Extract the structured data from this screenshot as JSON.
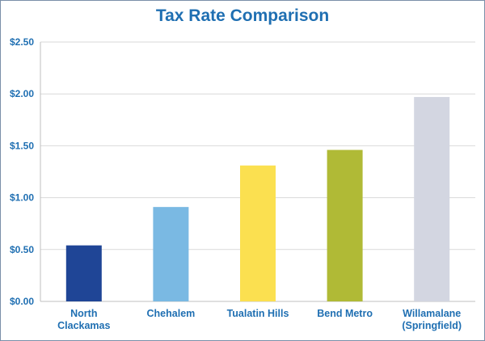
{
  "chart_data": {
    "type": "bar",
    "title": "Tax Rate Comparison",
    "xlabel": "",
    "ylabel": "",
    "ylim": [
      0,
      2.5
    ],
    "yticks": [
      "$0.00",
      "$0.50",
      "$1.00",
      "$1.50",
      "$2.00",
      "$2.50"
    ],
    "grid": true,
    "categories": [
      [
        "North",
        "Clackamas"
      ],
      [
        "Chehalem"
      ],
      [
        "Tualatin Hills"
      ],
      [
        "Bend Metro"
      ],
      [
        "Willamalane",
        "(Springfield)"
      ]
    ],
    "values": [
      0.54,
      0.91,
      1.31,
      1.46,
      1.97
    ],
    "colors": [
      "#1f4596",
      "#7ab9e3",
      "#fbe050",
      "#b0ba36",
      "#d3d6e1"
    ]
  },
  "colors": {
    "text": "#1f6fb2",
    "gridline": "#d9d9d9",
    "axis": "#bfbfbf",
    "border": "#7a8fa8"
  }
}
